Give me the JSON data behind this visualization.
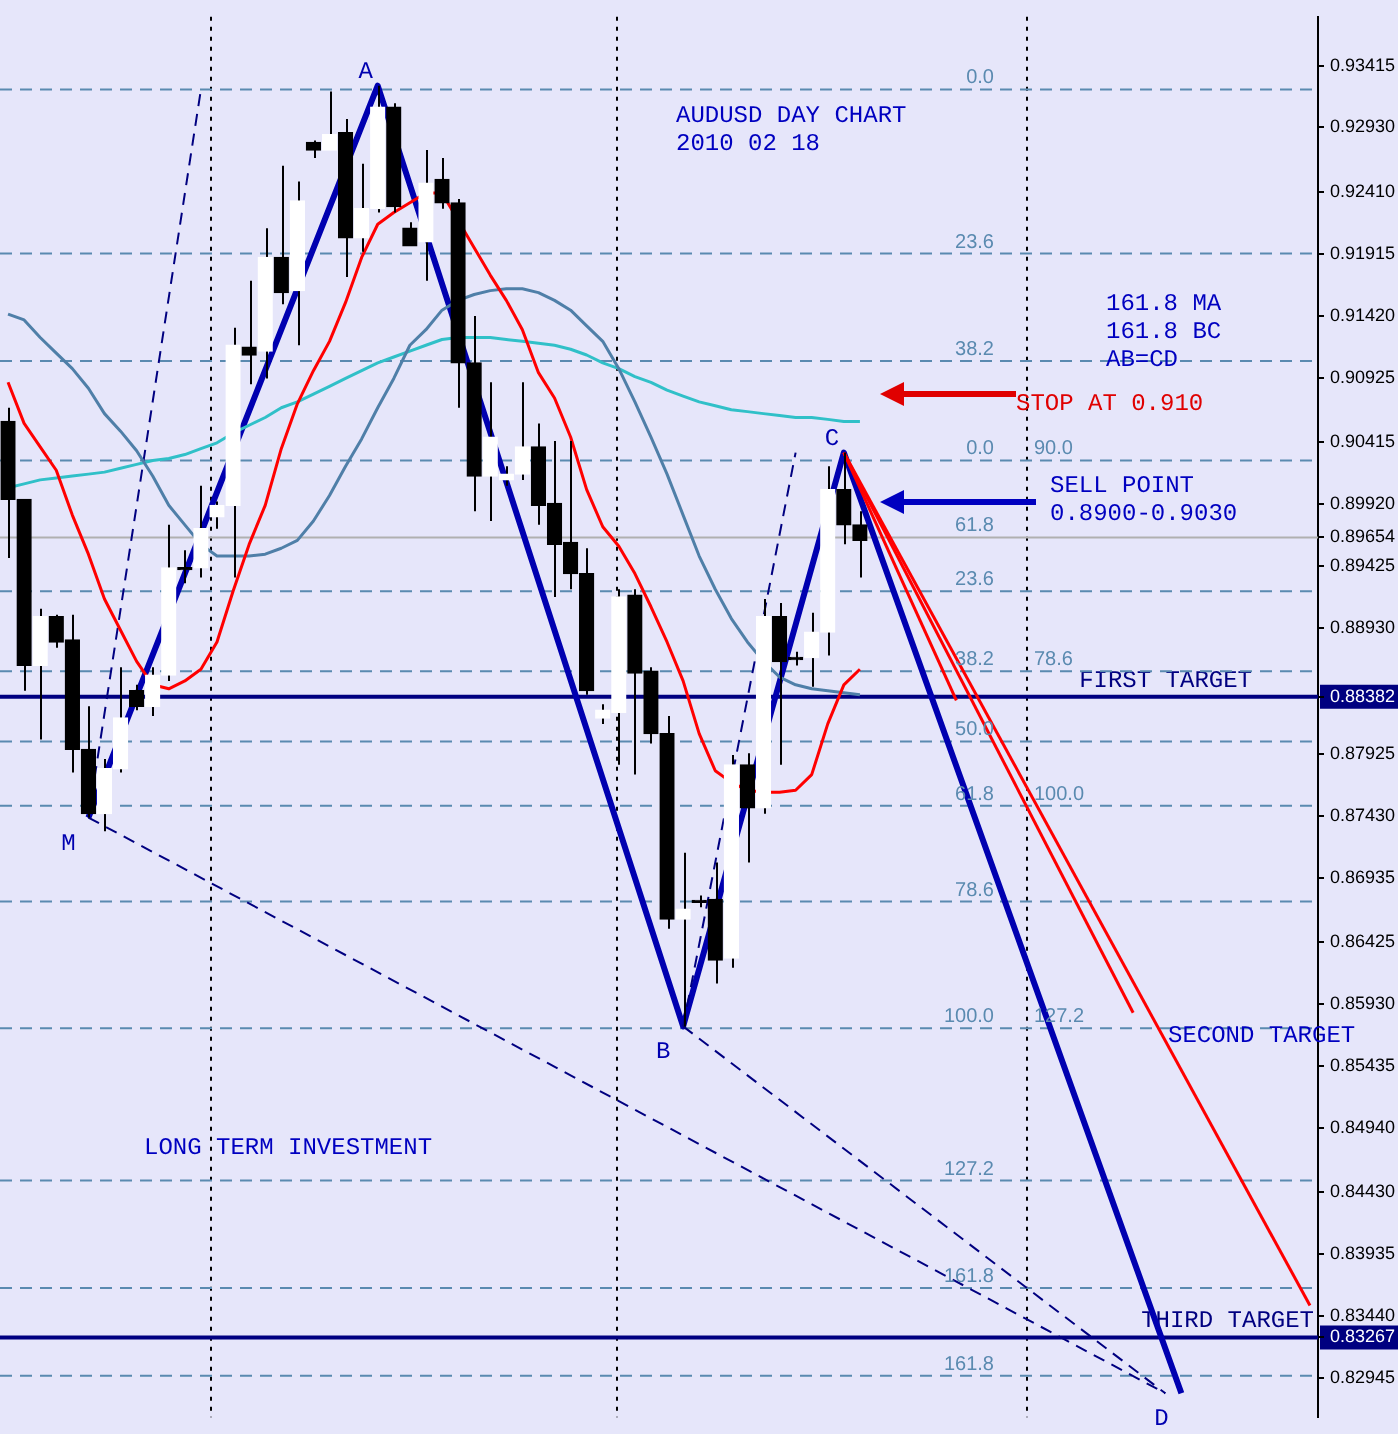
{
  "chart_data": {
    "type": "candlestick",
    "title": "AUDUSD DAY CHART",
    "subtitle": "2010 02 18",
    "categories": [
      null,
      null,
      null,
      null,
      null,
      null,
      null,
      null,
      null,
      null,
      null,
      null,
      null,
      null,
      null,
      null,
      null,
      null,
      null,
      null,
      null,
      null,
      null,
      null,
      null,
      null,
      null,
      null,
      null,
      null,
      null,
      null,
      null,
      null,
      null,
      null,
      null,
      null,
      null,
      null,
      null,
      null,
      null,
      null,
      null,
      null,
      null,
      null,
      null,
      null,
      null,
      null,
      null,
      null,
      null,
      null,
      null,
      null,
      null,
      null,
      null,
      null,
      null,
      null,
      null,
      null,
      null,
      null,
      null,
      null,
      null,
      null,
      null,
      null,
      null,
      null,
      null,
      null,
      null,
      null,
      null,
      null
    ],
    "series": [
      {
        "color": "#000000",
        "ohlc": [
          [
            0.9058,
            0.90689,
            0.89489,
            0.89957
          ],
          [
            0.89957,
            0.89957,
            0.8843,
            0.88632
          ],
          [
            0.88632,
            0.89084,
            0.8804,
            0.89022
          ],
          [
            0.89022,
            0.89037,
            0.88773,
            0.88819
          ],
          [
            0.88835,
            0.89037,
            0.87776,
            0.87962
          ],
          [
            0.87962,
            0.88305,
            0.87417,
            0.87448
          ],
          [
            0.87448,
            0.87885,
            0.87308,
            0.87807
          ],
          [
            0.87807,
            0.88617,
            0.87776,
            0.88212
          ],
          [
            0.8843,
            0.88477,
            0.88274,
            0.88305
          ],
          [
            0.88305,
            0.88617,
            0.88227,
            0.88555
          ],
          [
            0.88555,
            0.89754,
            0.88508,
            0.89411
          ],
          [
            0.89411,
            0.89552,
            0.89287,
            0.89396
          ],
          [
            0.89411,
            0.90066,
            0.89334,
            0.89723
          ],
          [
            0.89817,
            0.89941,
            0.89723,
            0.8991
          ],
          [
            0.8991,
            0.91328,
            0.89334,
            0.91188
          ],
          [
            0.91172,
            0.91702,
            0.90876,
            0.9111
          ],
          [
            0.91141,
            0.92122,
            0.90923,
            0.91889
          ],
          [
            0.91889,
            0.92621,
            0.91515,
            0.91608
          ],
          [
            0.91624,
            0.92496,
            0.91188,
            0.9234
          ],
          [
            0.92808,
            0.92823,
            0.92683,
            0.92746
          ],
          [
            0.92746,
            0.93213,
            0.92746,
            0.9287
          ],
          [
            0.92886,
            0.92995,
            0.91733,
            0.92045
          ],
          [
            0.92045,
            0.92637,
            0.91935,
            0.92278
          ],
          [
            0.92278,
            0.9326,
            0.92247,
            0.93088
          ],
          [
            0.93088,
            0.93119,
            0.92247,
            0.92294
          ],
          [
            0.92122,
            0.92169,
            0.91982,
            0.91982
          ],
          [
            0.92013,
            0.92746,
            0.91702,
            0.92481
          ],
          [
            0.92512,
            0.92683,
            0.92278,
            0.92325
          ],
          [
            0.92325,
            0.92356,
            0.90689,
            0.91047
          ],
          [
            0.91047,
            0.91421,
            0.89863,
            0.90144
          ],
          [
            0.90144,
            0.90892,
            0.89785,
            0.90455
          ],
          [
            0.90113,
            0.90222,
            0.90066,
            0.90159
          ],
          [
            0.90159,
            0.90892,
            0.90113,
            0.90377
          ],
          [
            0.90377,
            0.90564,
            0.89754,
            0.8991
          ],
          [
            0.89926,
            0.90424,
            0.89178,
            0.89599
          ],
          [
            0.89614,
            0.90424,
            0.8924,
            0.89365
          ],
          [
            0.89365,
            0.89567,
            0.88398,
            0.8843
          ],
          [
            0.88212,
            0.88321,
            0.88165,
            0.88274
          ],
          [
            0.88258,
            0.8924,
            0.87838,
            0.89178
          ],
          [
            0.89193,
            0.8924,
            0.8776,
            0.8857
          ],
          [
            0.88586,
            0.88617,
            0.88009,
            0.88087
          ],
          [
            0.88087,
            0.88227,
            0.86529,
            0.86607
          ],
          [
            0.86607,
            0.87137,
            0.8575,
            0.86685
          ],
          [
            0.86747,
            0.86794,
            0.86701,
            0.8674
          ],
          [
            0.86763,
            0.87059,
            0.86093,
            0.8628
          ],
          [
            0.86295,
            0.87916,
            0.86218,
            0.87838
          ],
          [
            0.87838,
            0.87931,
            0.87059,
            0.87495
          ],
          [
            0.87495,
            0.89162,
            0.87448,
            0.89022
          ],
          [
            0.89022,
            0.89131,
            0.87838,
            0.88663
          ],
          [
            0.88695,
            0.88741,
            0.88632,
            0.88679
          ],
          [
            0.88695,
            0.89053,
            0.88461,
            0.88897
          ],
          [
            0.88897,
            0.90222,
            0.8871,
            0.90035
          ],
          [
            0.90035,
            0.90331,
            0.89599,
            0.89754
          ],
          [
            0.89754,
            0.89863,
            0.89334,
            0.8963
          ],
          null,
          null,
          null,
          null,
          null,
          null,
          null,
          null,
          null,
          null,
          null,
          null,
          null,
          null,
          null,
          null,
          null,
          null,
          null,
          null,
          null,
          null,
          null,
          null,
          null,
          null,
          null,
          null
        ],
        "colors": [
          "#000000",
          "#000000",
          "#ffffff",
          "#000000",
          "#000000",
          "#000000",
          "#ffffff",
          "#ffffff",
          "#000000",
          "#ffffff",
          "#ffffff",
          "#000000",
          "#ffffff",
          "#ffffff",
          "#ffffff",
          "#000000",
          "#ffffff",
          "#000000",
          "#ffffff",
          "#000000",
          "#ffffff",
          "#000000",
          "#ffffff",
          "#ffffff",
          "#000000",
          "#000000",
          "#ffffff",
          "#000000",
          "#000000",
          "#000000",
          "#ffffff",
          "#ffffff",
          "#ffffff",
          "#000000",
          "#000000",
          "#000000",
          "#000000",
          "#ffffff",
          "#ffffff",
          "#000000",
          "#000000",
          "#000000",
          "#ffffff",
          "#000000",
          "#000000",
          "#ffffff",
          "#000000",
          "#ffffff",
          "#000000",
          "#000000",
          "#ffffff",
          "#ffffff",
          "#000000",
          "#000000",
          null,
          null,
          null,
          null,
          null,
          null,
          null,
          null,
          null,
          null,
          null,
          null,
          null,
          null,
          null,
          null,
          null,
          null,
          null,
          null,
          null,
          null,
          null,
          null,
          null,
          null,
          null,
          null
        ]
      },
      {
        "type": "line",
        "color": "#ff0000",
        "values": [
          0.90892,
          0.90564,
          0.90377,
          0.9019,
          0.89832,
          0.8952,
          0.89162,
          0.88913,
          0.88664,
          0.88477,
          0.88445,
          0.88508,
          0.88601,
          0.88819,
          0.89224,
          0.89598,
          0.8991,
          0.90362,
          0.9072,
          0.90985,
          0.91219,
          0.9153,
          0.91889,
          0.92154,
          0.92247,
          0.92325,
          0.92403,
          0.92403,
          null,
          0.91967,
          0.91748,
          0.91546,
          0.91312,
          0.90969,
          0.90767,
          0.90455,
          0.90035,
          0.89739,
          0.89583,
          0.89365,
          0.891,
          0.88819,
          0.88508,
          0.88087,
          0.87791,
          0.87698,
          0.87635,
          0.8762,
          0.8762,
          0.87635,
          0.8776,
          0.88165,
          0.88477,
          0.88601,
          null,
          null,
          null,
          null,
          null,
          null,
          null,
          null,
          null,
          null,
          null,
          null,
          null,
          null,
          null,
          null,
          null,
          null,
          null,
          null,
          null,
          null,
          null,
          null,
          null,
          null,
          null,
          null
        ]
      },
      {
        "type": "line",
        "color": "#4f7fa8",
        "values": [
          0.91437,
          0.9139,
          0.9125,
          0.91125,
          0.91001,
          0.90845,
          0.90642,
          0.90502,
          0.90346,
          0.90144,
          0.8991,
          0.89754,
          0.89598,
          0.89505,
          0.89505,
          0.89505,
          0.8952,
          0.89567,
          0.8963,
          0.89785,
          0.89988,
          0.90222,
          0.9044,
          0.90689,
          0.90923,
          0.91188,
          0.91312,
          0.91468,
          0.91546,
          0.91593,
          0.91624,
          0.91639,
          0.91639,
          0.91608,
          0.91546,
          0.91468,
          0.91343,
          0.91219,
          0.91001,
          0.90736,
          0.90455,
          0.90159,
          0.89832,
          0.89505,
          0.8924,
          0.89006,
          0.88819,
          0.88664,
          0.88539,
          0.88477,
          0.88445,
          0.8843,
          0.88414,
          0.88398,
          null,
          null,
          null,
          null,
          null,
          null,
          null,
          null,
          null,
          null,
          null,
          null,
          null,
          null,
          null,
          null,
          null,
          null,
          null,
          null,
          null,
          null,
          null,
          null,
          null,
          null,
          null,
          null
        ]
      },
      {
        "type": "line",
        "color": "#30c0c8",
        "values": [
          0.9005,
          0.90081,
          0.90113,
          0.90128,
          0.90144,
          0.90159,
          0.90175,
          0.90206,
          0.90237,
          0.90268,
          0.90284,
          0.90315,
          0.90362,
          0.90409,
          0.90486,
          0.90549,
          0.90611,
          0.90689,
          0.90736,
          0.90798,
          0.9086,
          0.90923,
          0.90985,
          0.91047,
          0.91094,
          0.91141,
          0.91188,
          0.91234,
          0.9125,
          0.9125,
          0.9125,
          0.91234,
          0.91219,
          0.91203,
          0.91188,
          0.91156,
          0.9111,
          0.91047,
          0.91001,
          0.90938,
          0.90892,
          0.90829,
          0.90782,
          0.90736,
          0.90705,
          0.90673,
          0.90658,
          0.90642,
          0.90627,
          0.90611,
          0.90611,
          0.90596,
          0.9058,
          0.9058,
          null,
          null,
          null,
          null,
          null,
          null,
          null,
          null,
          null,
          null,
          null,
          null,
          null,
          null,
          null,
          null,
          null,
          null,
          null,
          null,
          null,
          null,
          null,
          null,
          null,
          null,
          null,
          null
        ]
      },
      {
        "type": "line",
        "color": "#0000b0",
        "values": [
          null,
          null,
          null,
          null,
          null,
          0.87417,
          null,
          null,
          null,
          null,
          null,
          null,
          null,
          null,
          null,
          null,
          null,
          null,
          null,
          null,
          null,
          null,
          null,
          0.9326,
          null,
          null,
          null,
          null,
          null,
          null,
          null,
          null,
          null,
          null,
          null,
          null,
          null,
          null,
          null,
          null,
          null,
          null,
          0.8575,
          null,
          null,
          null,
          null,
          null,
          null,
          null,
          null,
          null,
          0.90331,
          null,
          null,
          null,
          null,
          null,
          null,
          null,
          null,
          null,
          null,
          null,
          null,
          null,
          null,
          null,
          null,
          null,
          null,
          null,
          null,
          0.82821,
          null,
          null,
          null,
          null,
          null,
          null,
          null,
          null
        ],
        "value_labels": [
          null,
          null,
          null,
          null,
          null,
          "M",
          null,
          null,
          null,
          null,
          null,
          null,
          null,
          null,
          null,
          null,
          null,
          null,
          null,
          null,
          null,
          null,
          null,
          "A",
          null,
          null,
          null,
          null,
          null,
          null,
          null,
          null,
          null,
          null,
          null,
          null,
          null,
          null,
          null,
          null,
          null,
          null,
          "B",
          null,
          null,
          null,
          null,
          null,
          null,
          null,
          null,
          null,
          "C",
          null,
          null,
          null,
          null,
          null,
          null,
          null,
          null,
          null,
          null,
          null,
          null,
          null,
          null,
          null,
          null,
          null,
          null,
          null,
          null,
          "D",
          null,
          null,
          null,
          null,
          null,
          null,
          null,
          null
        ]
      },
      {
        "type": "line",
        "color": "#ff0000",
        "values": [
          null,
          null,
          null,
          null,
          null,
          null,
          null,
          null,
          null,
          null,
          null,
          null,
          null,
          null,
          null,
          null,
          null,
          null,
          null,
          null,
          null,
          null,
          null,
          null,
          null,
          null,
          null,
          null,
          null,
          null,
          null,
          null,
          null,
          null,
          null,
          null,
          null,
          null,
          null,
          null,
          null,
          null,
          null,
          null,
          null,
          null,
          null,
          null,
          null,
          null,
          null,
          null,
          0.90331,
          null,
          null,
          null,
          null,
          null,
          null,
          0.88352,
          null,
          null,
          null,
          null,
          null,
          null,
          null,
          null,
          null,
          null,
          null,
          null,
          null,
          null,
          null,
          null,
          null,
          null,
          null,
          null,
          null,
          null
        ]
      },
      {
        "type": "line",
        "color": "#ff0000",
        "values": [
          null,
          null,
          null,
          null,
          null,
          null,
          null,
          null,
          null,
          null,
          null,
          null,
          null,
          null,
          null,
          null,
          null,
          null,
          null,
          null,
          null,
          null,
          null,
          null,
          null,
          null,
          null,
          null,
          null,
          null,
          null,
          null,
          null,
          null,
          null,
          null,
          null,
          null,
          null,
          null,
          null,
          null,
          null,
          null,
          null,
          null,
          null,
          null,
          null,
          null,
          null,
          null,
          0.90331,
          null,
          null,
          null,
          null,
          null,
          null,
          null,
          null,
          null,
          null,
          null,
          null,
          null,
          null,
          null,
          null,
          null,
          0.85859,
          null,
          null,
          null,
          null,
          null,
          null,
          null,
          null,
          null,
          null,
          null
        ]
      },
      {
        "type": "line",
        "color": "#ff0000",
        "values": [
          null,
          null,
          null,
          null,
          null,
          null,
          null,
          null,
          null,
          null,
          null,
          null,
          null,
          null,
          null,
          null,
          null,
          null,
          null,
          null,
          null,
          null,
          null,
          null,
          null,
          null,
          null,
          null,
          null,
          null,
          null,
          null,
          null,
          null,
          null,
          null,
          null,
          null,
          null,
          null,
          null,
          null,
          null,
          null,
          null,
          null,
          null,
          null,
          null,
          null,
          null,
          null,
          0.90331,
          null,
          null,
          null,
          null,
          null,
          null,
          null,
          null,
          null,
          null,
          null,
          null,
          null,
          null,
          null,
          null,
          null,
          null,
          null,
          null,
          null,
          null,
          null,
          null,
          null,
          null,
          null,
          null,
          0.83522
        ]
      },
      {
        "type": "line",
        "color": "#000080",
        "line_style": "dashed",
        "values": [
          null,
          null,
          null,
          null,
          null,
          0.87417,
          null,
          null,
          null,
          null,
          null,
          null,
          0.93229,
          null,
          null,
          null,
          null,
          null,
          null,
          null,
          null,
          null,
          null,
          null,
          null,
          null,
          null,
          null,
          null,
          null,
          null,
          null,
          null,
          null,
          null,
          null,
          null,
          null,
          null,
          null,
          null,
          null,
          null,
          null,
          null,
          null,
          null,
          null,
          null,
          null,
          null,
          null,
          null,
          null,
          null,
          null,
          null,
          null,
          null,
          null,
          null,
          null,
          null,
          null,
          null,
          null,
          null,
          null,
          null,
          null,
          null,
          null,
          null,
          null,
          null,
          null,
          null,
          null,
          null,
          null,
          null,
          null
        ]
      },
      {
        "type": "line",
        "color": "#000080",
        "line_style": "dashed",
        "values": [
          null,
          null,
          null,
          null,
          null,
          null,
          null,
          null,
          null,
          null,
          null,
          null,
          null,
          null,
          null,
          null,
          null,
          null,
          null,
          null,
          null,
          null,
          null,
          null,
          null,
          null,
          null,
          null,
          null,
          null,
          null,
          null,
          null,
          null,
          null,
          null,
          null,
          null,
          null,
          null,
          null,
          null,
          0.8575,
          null,
          null,
          null,
          null,
          null,
          null,
          0.90331,
          null,
          null,
          null,
          null,
          null,
          null,
          null,
          null,
          null,
          null,
          null,
          null,
          null,
          null,
          null,
          null,
          null,
          null,
          null,
          null,
          null,
          null,
          null,
          null,
          null,
          null,
          null,
          null,
          null,
          null,
          null,
          null
        ]
      },
      {
        "type": "line",
        "color": "#000080",
        "line_style": "dashed",
        "values": [
          null,
          null,
          null,
          null,
          null,
          0.87417,
          null,
          null,
          null,
          null,
          null,
          null,
          null,
          null,
          null,
          null,
          null,
          null,
          null,
          null,
          null,
          null,
          null,
          null,
          null,
          null,
          null,
          null,
          null,
          null,
          null,
          null,
          null,
          null,
          null,
          null,
          null,
          null,
          null,
          null,
          null,
          null,
          null,
          null,
          null,
          null,
          null,
          null,
          null,
          null,
          null,
          null,
          null,
          null,
          null,
          null,
          null,
          null,
          null,
          null,
          null,
          null,
          null,
          null,
          null,
          null,
          null,
          null,
          null,
          null,
          null,
          null,
          0.82821,
          null,
          null,
          null,
          null,
          null,
          null,
          null,
          null,
          null
        ]
      },
      {
        "type": "line",
        "color": "#000080",
        "line_style": "dashed",
        "values": [
          null,
          null,
          null,
          null,
          null,
          null,
          null,
          null,
          null,
          null,
          null,
          null,
          null,
          null,
          null,
          null,
          null,
          null,
          null,
          null,
          null,
          null,
          null,
          null,
          null,
          null,
          null,
          null,
          null,
          null,
          null,
          null,
          null,
          null,
          null,
          null,
          null,
          null,
          null,
          null,
          null,
          null,
          0.8575,
          null,
          null,
          null,
          null,
          null,
          null,
          null,
          null,
          null,
          null,
          null,
          null,
          null,
          null,
          null,
          null,
          null,
          null,
          null,
          null,
          null,
          null,
          null,
          null,
          null,
          null,
          null,
          null,
          null,
          0.82821,
          null,
          null,
          null,
          null,
          null,
          null,
          null,
          null,
          null
        ]
      }
    ],
    "ylim": [
      0.8263,
      0.9381
    ],
    "yticks": [
      {
        "value": 0.93415,
        "label": "0.93415"
      },
      {
        "value": 0.9293,
        "label": "0.92930"
      },
      {
        "value": 0.9241,
        "label": "0.92410"
      },
      {
        "value": 0.91915,
        "label": "0.91915"
      },
      {
        "value": 0.9142,
        "label": "0.91420"
      },
      {
        "value": 0.90925,
        "label": "0.90925"
      },
      {
        "value": 0.90415,
        "label": "0.90415"
      },
      {
        "value": 0.8992,
        "label": "0.89920"
      },
      {
        "value": 0.89654,
        "label": "0.89654"
      },
      {
        "value": 0.89425,
        "label": "0.89425"
      },
      {
        "value": 0.8893,
        "label": "0.88930"
      },
      {
        "value": 0.88382,
        "label": "0.88382"
      },
      {
        "value": 0.87925,
        "label": "0.87925"
      },
      {
        "value": 0.8743,
        "label": "0.87430"
      },
      {
        "value": 0.86935,
        "label": "0.86935"
      },
      {
        "value": 0.86425,
        "label": "0.86425"
      },
      {
        "value": 0.8593,
        "label": "0.85930"
      },
      {
        "value": 0.85435,
        "label": "0.85435"
      },
      {
        "value": 0.8494,
        "label": "0.84940"
      },
      {
        "value": 0.8443,
        "label": "0.84430"
      },
      {
        "value": 0.83935,
        "label": "0.83935"
      },
      {
        "value": 0.8344,
        "label": "0.83440"
      },
      {
        "value": 0.83267,
        "label": "0.83267"
      },
      {
        "value": 0.82945,
        "label": "0.82945"
      }
    ],
    "ref_lines": [
      {
        "axis": "y",
        "value": 0.88382,
        "label": "FIRST TARGET",
        "color": "#000080"
      },
      {
        "axis": "y",
        "value": 0.83267,
        "label": "THIRD TARGET",
        "color": "#000080"
      },
      {
        "axis": "y",
        "value": 0.89654,
        "color": "#b0b0b0"
      },
      {
        "axis": "y",
        "value": 0.9323,
        "color": "#5a8ab0",
        "line_style": "dashed"
      },
      {
        "axis": "y",
        "value": 0.9192,
        "color": "#5a8ab0",
        "line_style": "dashed"
      },
      {
        "axis": "y",
        "value": 0.91063,
        "color": "#5a8ab0",
        "line_style": "dashed"
      },
      {
        "axis": "y",
        "value": 0.90268,
        "color": "#5a8ab0",
        "line_style": "dashed"
      },
      {
        "axis": "y",
        "value": 0.89224,
        "color": "#5a8ab0",
        "line_style": "dashed"
      },
      {
        "axis": "y",
        "value": 0.88586,
        "color": "#5a8ab0",
        "line_style": "dashed"
      },
      {
        "axis": "y",
        "value": 0.88025,
        "color": "#5a8ab0",
        "line_style": "dashed"
      },
      {
        "axis": "y",
        "value": 0.87511,
        "color": "#5a8ab0",
        "line_style": "dashed"
      },
      {
        "axis": "y",
        "value": 0.86747,
        "color": "#5a8ab0",
        "line_style": "dashed"
      },
      {
        "axis": "y",
        "value": 0.85735,
        "color": "#5a8ab0",
        "line_style": "dashed"
      },
      {
        "axis": "y",
        "value": 0.84519,
        "color": "#5a8ab0",
        "line_style": "dashed"
      },
      {
        "axis": "y",
        "value": 0.83662,
        "color": "#5a8ab0",
        "line_style": "dashed"
      },
      {
        "axis": "y",
        "value": 0.82961,
        "color": "#5a8ab0",
        "line_style": "dashed"
      }
    ],
    "annotations": [
      "161.8 MA",
      "161.8 BC",
      "AB=CD",
      "STOP AT 0.910",
      "SELL POINT",
      "0.8900-0.9030",
      "SECOND TARGET",
      "LONG TERM INVESTMENT",
      {
        "text": "0.0",
        "y": 0.9323
      },
      {
        "text": "23.6",
        "y": 0.9192
      },
      {
        "text": "38.2",
        "y": 0.91063
      },
      {
        "text": "0.0",
        "y": 0.90268
      },
      {
        "text": "90.0",
        "y": 0.90268
      },
      {
        "text": "61.8",
        "y": 0.89654
      },
      {
        "text": "23.6",
        "y": 0.89224
      },
      {
        "text": "38.2",
        "y": 0.88586
      },
      {
        "text": "78.6",
        "y": 0.88586
      },
      {
        "text": "50.0",
        "y": 0.88025
      },
      {
        "text": "61.8",
        "y": 0.87511
      },
      {
        "text": "100.0",
        "y": 0.87511
      },
      {
        "text": "78.6",
        "y": 0.86747
      },
      {
        "text": "100.0",
        "y": 0.85735
      },
      {
        "text": "127.2",
        "y": 0.85735
      },
      {
        "text": "127.2",
        "y": 0.84519
      },
      {
        "text": "161.8",
        "y": 0.83662
      },
      {
        "text": "161.8",
        "y": 0.82961
      }
    ]
  }
}
